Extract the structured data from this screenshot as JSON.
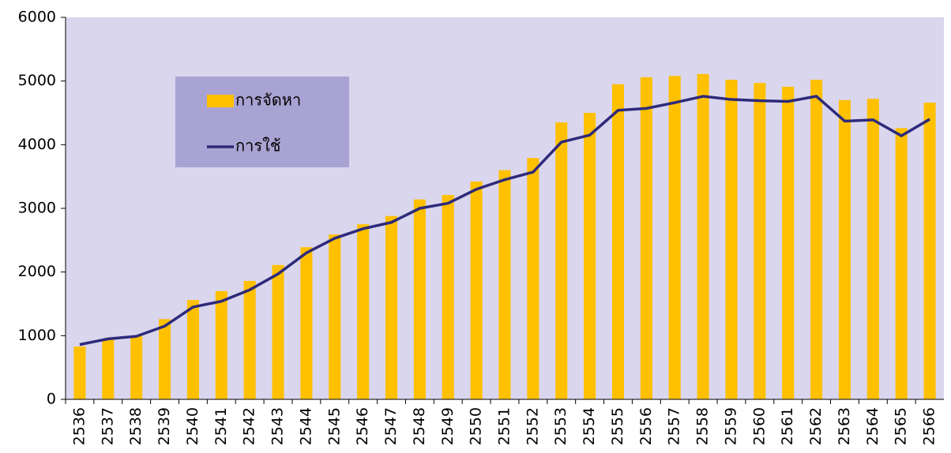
{
  "chart_data": {
    "type": "bar_line",
    "categories": [
      "2536",
      "2537",
      "2538",
      "2539",
      "2540",
      "2541",
      "2542",
      "2543",
      "2544",
      "2545",
      "2546",
      "2547",
      "2548",
      "2549",
      "2550",
      "2551",
      "2552",
      "2553",
      "2554",
      "2555",
      "2556",
      "2557",
      "2558",
      "2559",
      "2560",
      "2561",
      "2562",
      "2563",
      "2564",
      "2565",
      "2566"
    ],
    "series": [
      {
        "name": "การจัดหา",
        "type": "bar",
        "color": "#ffc000",
        "values": [
          830,
          940,
          1000,
          1260,
          1560,
          1700,
          1860,
          2110,
          2390,
          2590,
          2750,
          2880,
          3140,
          3210,
          3420,
          3600,
          3790,
          4350,
          4500,
          4950,
          5060,
          5080,
          5110,
          5020,
          4970,
          4910,
          5020,
          4700,
          4720,
          4260,
          4660
        ]
      },
      {
        "name": "การใช้",
        "type": "line",
        "color": "#2e2a7a",
        "values": [
          860,
          950,
          990,
          1150,
          1450,
          1540,
          1720,
          1970,
          2300,
          2530,
          2680,
          2780,
          3000,
          3080,
          3300,
          3450,
          3570,
          4040,
          4150,
          4540,
          4570,
          4660,
          4760,
          4710,
          4690,
          4680,
          4760,
          4370,
          4390,
          4140,
          4400
        ]
      }
    ],
    "ylim": [
      0,
      6000
    ],
    "yticks": [
      0,
      1000,
      2000,
      3000,
      4000,
      5000,
      6000
    ],
    "grid": false,
    "legend": "upper left",
    "background": "#dad6ee",
    "legend_background": "#a9a3d3"
  }
}
